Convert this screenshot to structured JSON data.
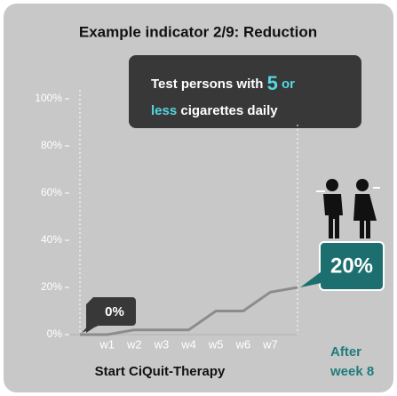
{
  "chart_data": {
    "type": "line",
    "title": "Example indicator 2/9: Reduction",
    "callout": [
      "Test persons with",
      "5",
      "or",
      "less",
      "cigarettes daily"
    ],
    "categories": [
      null,
      "w1",
      "w2",
      "w3",
      "w4",
      "w5",
      "w6",
      "w7",
      null
    ],
    "series": [
      {
        "name": null,
        "color": "#8c8c8c",
        "values": [
          0,
          0,
          2,
          2,
          2,
          10,
          10,
          18,
          20
        ],
        "value_labels": [
          "0%",
          null,
          null,
          null,
          null,
          null,
          null,
          null,
          "20%"
        ]
      }
    ],
    "start_label": "Start CiQuit-Therapy",
    "end_label": [
      "After",
      "week 8"
    ],
    "ylim": [
      0,
      100
    ],
    "yticks": [
      {
        "value": 0,
        "label": "0%"
      },
      {
        "value": 20,
        "label": "20%"
      },
      {
        "value": 40,
        "label": "40%"
      },
      {
        "value": 60,
        "label": "60%"
      },
      {
        "value": 80,
        "label": "80%"
      },
      {
        "value": 100,
        "label": "100%"
      }
    ]
  }
}
